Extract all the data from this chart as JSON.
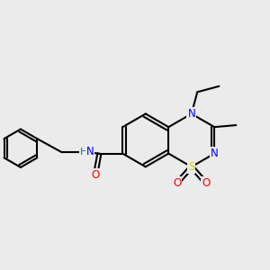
{
  "background_color": "#ebebeb",
  "bond_color": "#000000",
  "atom_colors": {
    "N": "#0000ff",
    "S": "#cccc00",
    "O": "#ff0000",
    "C": "#000000",
    "H": "#008080"
  },
  "bond_width": 1.5,
  "font_size": 8.5
}
